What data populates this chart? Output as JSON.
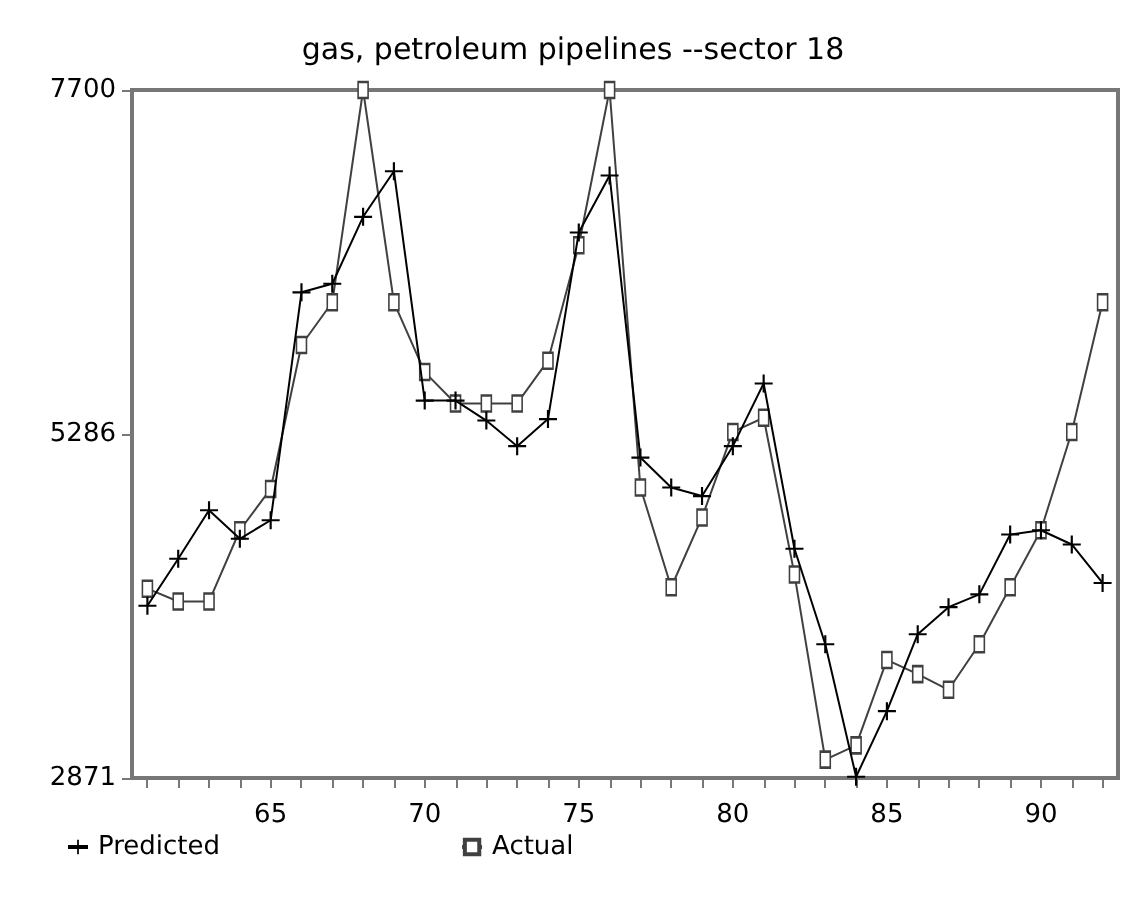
{
  "chart_data": {
    "type": "line",
    "title": "gas, petroleum pipelines --sector 18",
    "x": [
      61,
      62,
      63,
      64,
      65,
      66,
      67,
      68,
      69,
      70,
      71,
      72,
      73,
      74,
      75,
      76,
      77,
      78,
      79,
      80,
      81,
      82,
      83,
      84,
      85,
      86,
      87,
      88,
      89,
      90,
      91,
      92
    ],
    "series": [
      {
        "name": "Predicted",
        "color": "#000000",
        "marker": "cross",
        "values": [
          4080,
          4410,
          4750,
          4550,
          4680,
          6280,
          6340,
          6810,
          7130,
          5520,
          5520,
          5380,
          5200,
          5390,
          6700,
          7100,
          5120,
          4910,
          4850,
          5200,
          5640,
          4480,
          3810,
          2880,
          3340,
          3880,
          4070,
          4160,
          4580,
          4610,
          4510,
          4240
        ]
      },
      {
        "name": "Actual",
        "color": "#404040",
        "marker": "square",
        "values": [
          4200,
          4110,
          4110,
          4610,
          4900,
          5910,
          6210,
          7700,
          6210,
          5720,
          5500,
          5500,
          5500,
          5800,
          6610,
          7700,
          4910,
          4210,
          4700,
          5300,
          5400,
          4300,
          3000,
          3100,
          3700,
          3600,
          3490,
          3810,
          4210,
          4610,
          5300,
          6210
        ]
      }
    ],
    "xlim": [
      60.5,
      92.5
    ],
    "xticks": [
      {
        "value": 61,
        "label": null
      },
      {
        "value": 62,
        "label": null
      },
      {
        "value": 63,
        "label": null
      },
      {
        "value": 64,
        "label": null
      },
      65,
      {
        "value": 66,
        "label": null
      },
      {
        "value": 67,
        "label": null
      },
      {
        "value": 68,
        "label": null
      },
      {
        "value": 69,
        "label": null
      },
      70,
      {
        "value": 71,
        "label": null
      },
      {
        "value": 72,
        "label": null
      },
      {
        "value": 73,
        "label": null
      },
      {
        "value": 74,
        "label": null
      },
      75,
      {
        "value": 76,
        "label": null
      },
      {
        "value": 77,
        "label": null
      },
      {
        "value": 78,
        "label": null
      },
      {
        "value": 79,
        "label": null
      },
      80,
      {
        "value": 81,
        "label": null
      },
      {
        "value": 82,
        "label": null
      },
      {
        "value": 83,
        "label": null
      },
      {
        "value": 84,
        "label": null
      },
      85,
      {
        "value": 86,
        "label": null
      },
      {
        "value": 87,
        "label": null
      },
      {
        "value": 88,
        "label": null
      },
      {
        "value": 89,
        "label": null
      },
      90,
      {
        "value": 91,
        "label": null
      },
      {
        "value": 92,
        "label": null
      }
    ],
    "ylim": [
      2871,
      7700
    ],
    "yticks": [
      2871,
      5286,
      7700
    ],
    "grid": false,
    "legend": "bottom left"
  }
}
